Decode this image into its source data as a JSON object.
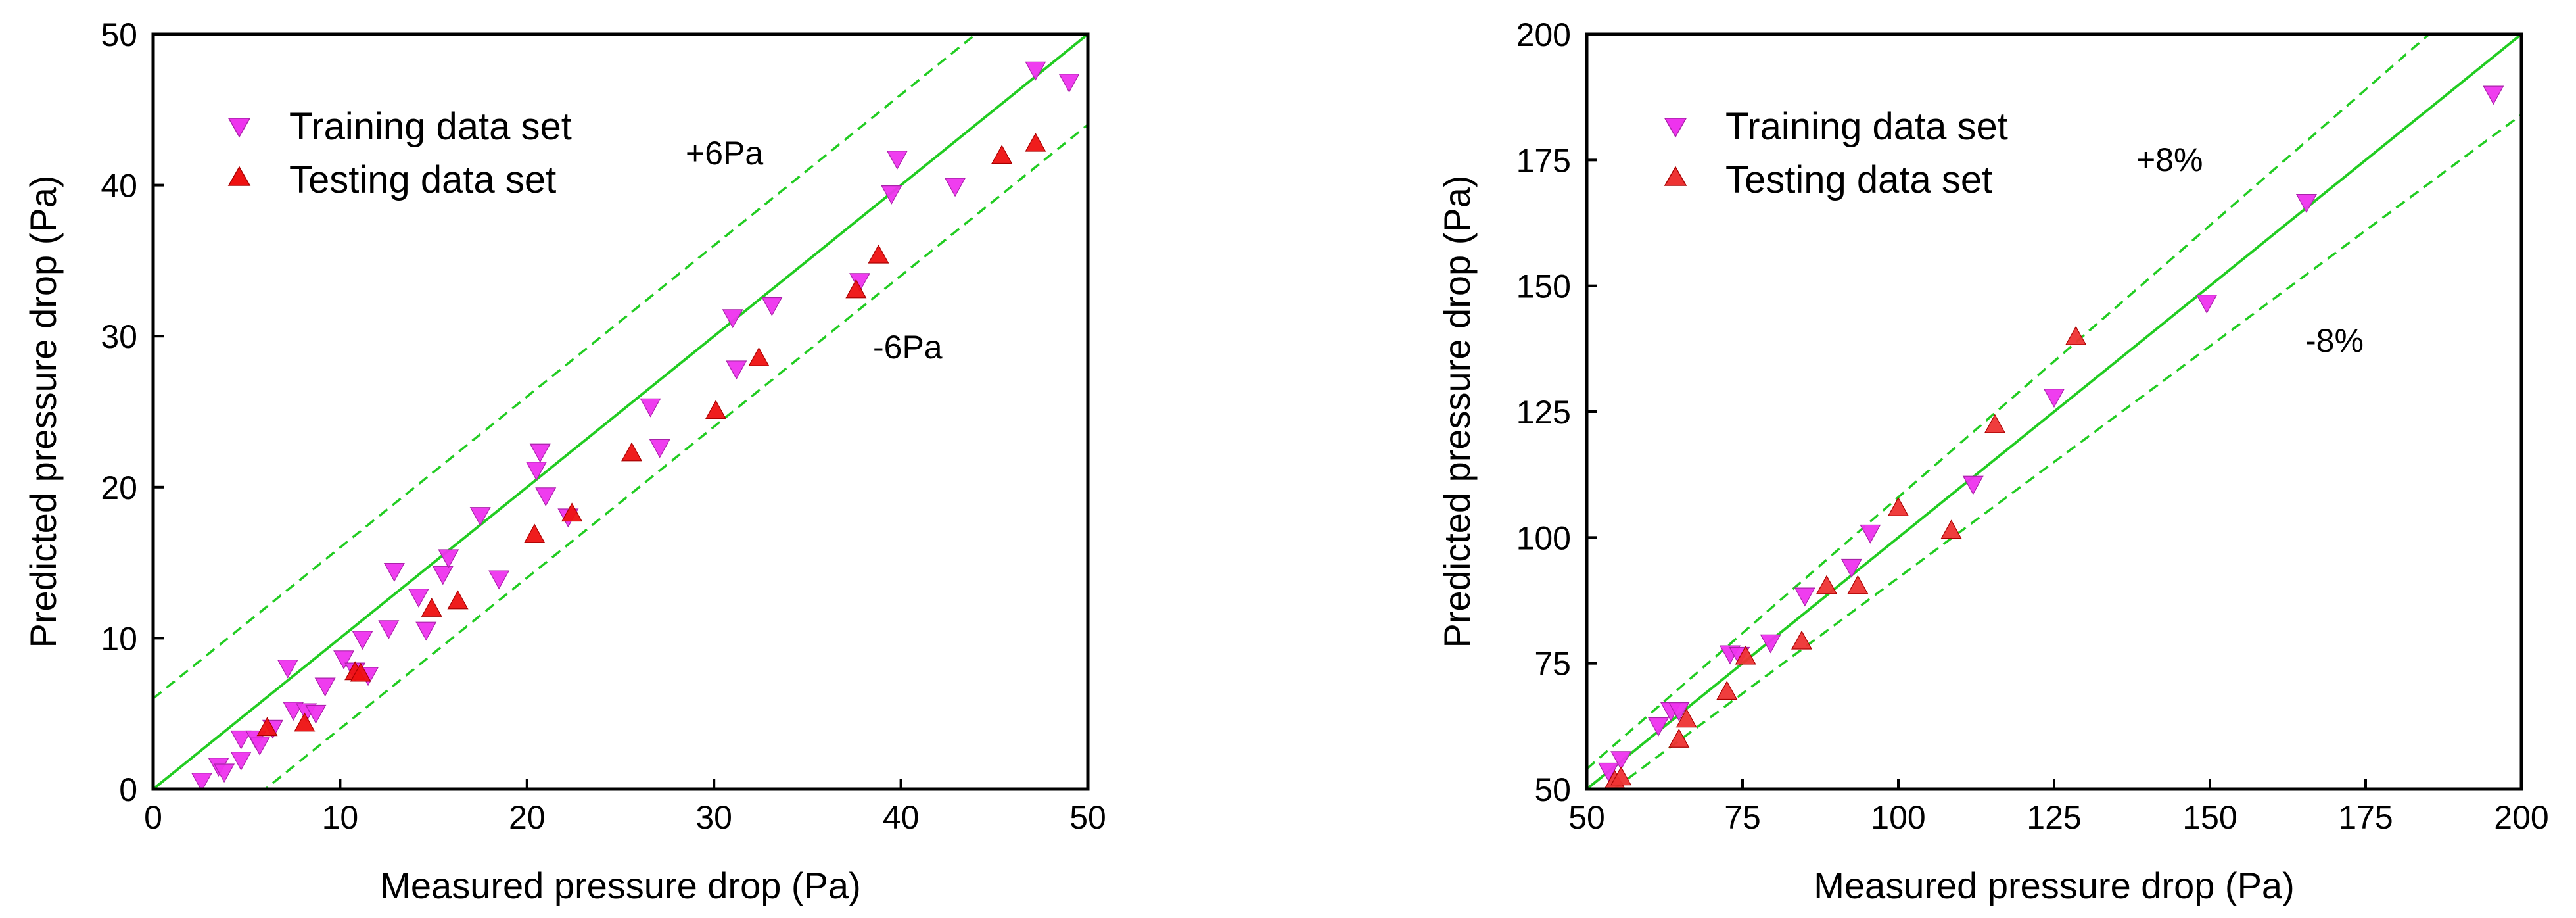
{
  "chart_data": [
    {
      "type": "scatter",
      "xlabel": "Measured pressure drop (Pa)",
      "ylabel": "Predicted pressure drop (Pa)",
      "xlim": [
        0,
        50
      ],
      "ylim": [
        0,
        50
      ],
      "xticks": [
        "0",
        "10",
        "20",
        "30",
        "40",
        "50"
      ],
      "yticks": [
        "0",
        "10",
        "20",
        "30",
        "40",
        "50"
      ],
      "legend_position": "top-left",
      "reference_lines": [
        {
          "name": "y = x",
          "kind": "absolute",
          "offset": 0,
          "style": "solid"
        },
        {
          "name": "+6Pa",
          "kind": "absolute",
          "offset": 6,
          "style": "dashed"
        },
        {
          "name": "-6Pa",
          "kind": "absolute",
          "offset": -6,
          "style": "dashed"
        }
      ],
      "annotations": [
        {
          "text": "+6Pa",
          "x": 28.5,
          "y": 42.5
        },
        {
          "text": "-6Pa",
          "x": 38.5,
          "y": 29.2
        }
      ],
      "series": [
        {
          "name": "Training data set",
          "marker": "triangle-down",
          "color": "#ee33ee",
          "points": [
            [
              2.6,
              0.5
            ],
            [
              3.5,
              1.5
            ],
            [
              3.8,
              1.1
            ],
            [
              4.7,
              3.3
            ],
            [
              4.7,
              1.9
            ],
            [
              5.5,
              3.3
            ],
            [
              5.7,
              2.9
            ],
            [
              6.4,
              4.0
            ],
            [
              7.2,
              8.0
            ],
            [
              7.5,
              5.2
            ],
            [
              8.2,
              5.1
            ],
            [
              8.7,
              5.0
            ],
            [
              9.2,
              6.8
            ],
            [
              10.2,
              8.6
            ],
            [
              10.8,
              7.8
            ],
            [
              11.2,
              9.9
            ],
            [
              11.5,
              7.5
            ],
            [
              12.6,
              10.6
            ],
            [
              12.9,
              14.4
            ],
            [
              14.2,
              12.7
            ],
            [
              14.6,
              10.5
            ],
            [
              15.5,
              14.2
            ],
            [
              15.8,
              15.3
            ],
            [
              17.5,
              18.1
            ],
            [
              18.5,
              13.9
            ],
            [
              20.5,
              21.1
            ],
            [
              20.7,
              22.3
            ],
            [
              21.0,
              19.4
            ],
            [
              22.2,
              18.0
            ],
            [
              26.6,
              25.3
            ],
            [
              27.1,
              22.6
            ],
            [
              31.0,
              31.2
            ],
            [
              31.2,
              27.8
            ],
            [
              33.1,
              32.0
            ],
            [
              37.8,
              33.6
            ],
            [
              39.5,
              39.4
            ],
            [
              39.8,
              41.7
            ],
            [
              42.9,
              39.9
            ],
            [
              47.2,
              47.6
            ],
            [
              49.0,
              46.8
            ]
          ]
        },
        {
          "name": "Testing data set",
          "marker": "triangle-up",
          "color": "#ee1111",
          "points": [
            [
              6.1,
              4.1
            ],
            [
              8.1,
              4.4
            ],
            [
              10.8,
              7.8
            ],
            [
              11.1,
              7.7
            ],
            [
              14.9,
              12.0
            ],
            [
              16.3,
              12.5
            ],
            [
              20.4,
              16.9
            ],
            [
              22.4,
              18.3
            ],
            [
              25.6,
              22.3
            ],
            [
              30.1,
              25.1
            ],
            [
              32.4,
              28.6
            ],
            [
              37.6,
              33.1
            ],
            [
              38.8,
              35.4
            ],
            [
              45.4,
              42.0
            ],
            [
              47.2,
              42.8
            ]
          ]
        }
      ]
    },
    {
      "type": "scatter",
      "xlabel": "Measured pressure drop (Pa)",
      "ylabel": "Predicted pressure drop (Pa)",
      "xlim": [
        50,
        200
      ],
      "ylim": [
        50,
        200
      ],
      "xticks": [
        "50",
        "75",
        "100",
        "125",
        "150",
        "175",
        "200"
      ],
      "yticks": [
        "50",
        "75",
        "100",
        "125",
        "150",
        "175",
        "200"
      ],
      "legend_position": "top-left",
      "reference_lines": [
        {
          "name": "y = x",
          "kind": "relative",
          "factor": 1.0,
          "style": "solid"
        },
        {
          "name": "+8%",
          "kind": "relative",
          "factor": 1.08,
          "style": "dashed"
        },
        {
          "name": "-8%",
          "kind": "relative",
          "factor": 0.92,
          "style": "dashed"
        }
      ],
      "annotations": [
        {
          "text": "+8%",
          "x": 133,
          "y": 175
        },
        {
          "text": "-8%",
          "x": 168,
          "y": 138
        }
      ],
      "series": [
        {
          "name": "Training data set",
          "marker": "triangle-down",
          "color": "#ee33ee",
          "points": [
            [
              53.5,
              53.5
            ],
            [
              55.5,
              55.8
            ],
            [
              61.5,
              62.5
            ],
            [
              63.5,
              65.5
            ],
            [
              64.8,
              65.5
            ],
            [
              73.0,
              76.8
            ],
            [
              74.5,
              76.5
            ],
            [
              79.5,
              79.0
            ],
            [
              85.0,
              88.3
            ],
            [
              92.5,
              94.0
            ],
            [
              95.5,
              100.8
            ],
            [
              112.0,
              110.5
            ],
            [
              125.0,
              127.8
            ],
            [
              149.5,
              146.5
            ],
            [
              165.5,
              166.5
            ],
            [
              195.5,
              188.0
            ]
          ]
        },
        {
          "name": "Testing data set",
          "marker": "triangle-up",
          "color": "#ee3333",
          "points": [
            [
              54.5,
              51.8
            ],
            [
              55.5,
              52.5
            ],
            [
              64.8,
              60.0
            ],
            [
              66.0,
              64.0
            ],
            [
              72.5,
              69.5
            ],
            [
              75.5,
              76.5
            ],
            [
              84.5,
              79.5
            ],
            [
              88.5,
              90.5
            ],
            [
              93.5,
              90.5
            ],
            [
              100.0,
              106.0
            ],
            [
              108.5,
              101.5
            ],
            [
              115.5,
              122.5
            ],
            [
              128.5,
              140.0
            ]
          ]
        }
      ]
    }
  ]
}
